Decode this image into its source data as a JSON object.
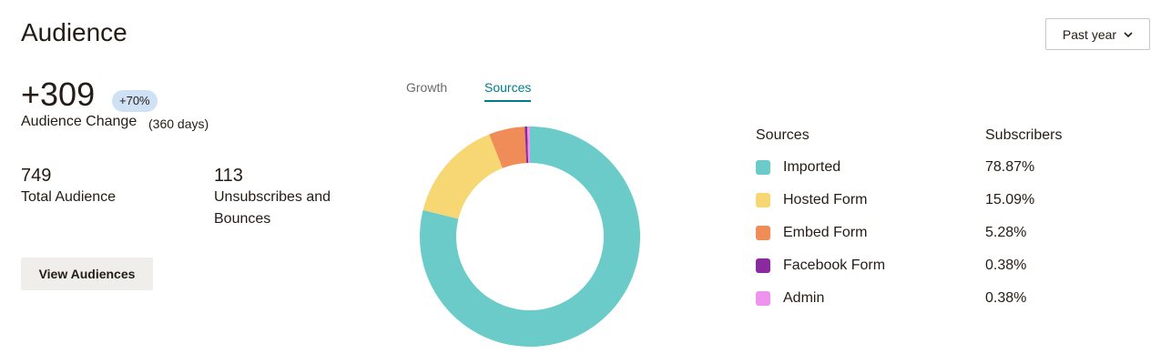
{
  "header": {
    "title": "Audience",
    "period": "Past year"
  },
  "stats": {
    "change": "+309",
    "change_pct": "+70%",
    "change_label": "Audience Change",
    "change_period": "(360 days)",
    "total": "749",
    "total_label": "Total Audience",
    "unsubscribes": "113",
    "unsubscribes_label": "Unsubscribes and Bounces"
  },
  "button": "View Audiences",
  "tabs": [
    "Growth",
    "Sources"
  ],
  "chart_data": {
    "type": "pie",
    "columns": [
      "Sources",
      "Subscribers"
    ],
    "categories": [
      "Imported",
      "Hosted Form",
      "Embed Form",
      "Facebook Form",
      "Admin"
    ],
    "values": [
      78.87,
      15.09,
      5.28,
      0.38,
      0.38
    ],
    "value_labels": [
      "78.87%",
      "15.09%",
      "5.28%",
      "0.38%",
      "0.38%"
    ],
    "colors": [
      "#6acbc8",
      "#f7d674",
      "#ef8c58",
      "#8a2a9f",
      "#ee94ee"
    ]
  }
}
